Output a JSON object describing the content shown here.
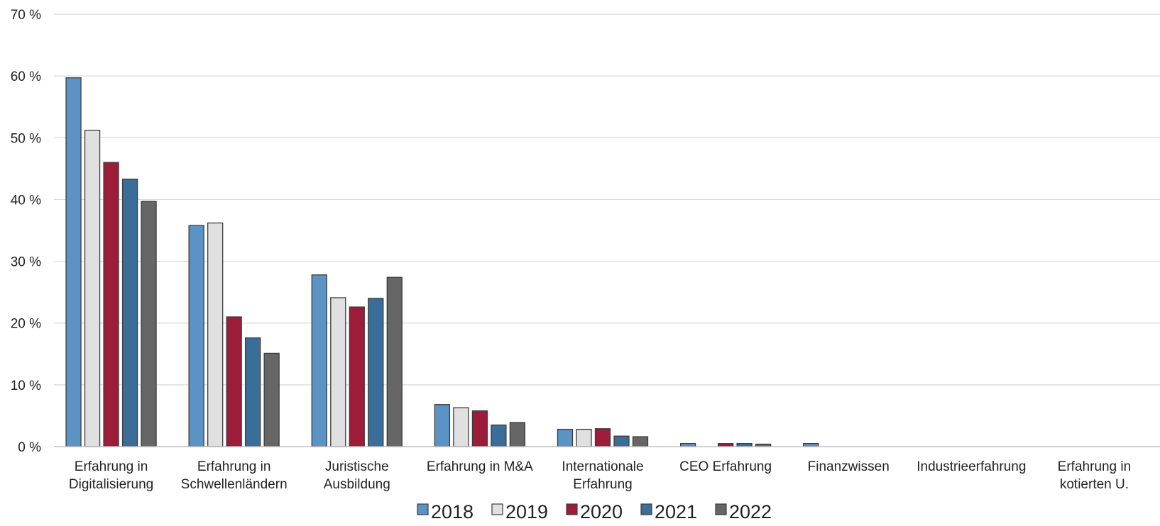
{
  "chart_data": {
    "type": "bar",
    "title": "",
    "xlabel": "",
    "ylabel": "",
    "ylim": [
      0,
      70
    ],
    "yticks": [
      0,
      10,
      20,
      30,
      40,
      50,
      60,
      70
    ],
    "y_tick_suffix": " %",
    "grid": true,
    "legend_position": "bottom",
    "categories": [
      [
        "Erfahrung in",
        "Digitalisierung"
      ],
      [
        "Erfahrung in",
        "Schwellenländern"
      ],
      [
        "Juristische",
        "Ausbildung"
      ],
      [
        "Erfahrung in M&A"
      ],
      [
        "Internationale",
        "Erfahrung"
      ],
      [
        "CEO Erfahrung"
      ],
      [
        "Finanzwissen"
      ],
      [
        "Industrieerfahrung"
      ],
      [
        "Erfahrung in",
        "kotierten U."
      ]
    ],
    "series": [
      {
        "name": "2018",
        "color": "#5b93c5",
        "values": [
          59.7,
          35.8,
          27.8,
          6.8,
          2.8,
          0.5,
          0.5,
          0,
          0
        ]
      },
      {
        "name": "2019",
        "color": "#e0e0e0",
        "values": [
          51.2,
          36.2,
          24.1,
          6.3,
          2.8,
          0,
          0,
          0,
          0
        ]
      },
      {
        "name": "2020",
        "color": "#9d1c3a",
        "values": [
          46.0,
          21.0,
          22.6,
          5.8,
          2.9,
          0.5,
          0,
          0,
          0
        ]
      },
      {
        "name": "2021",
        "color": "#3a6e99",
        "values": [
          43.3,
          17.6,
          24.0,
          3.5,
          1.7,
          0.5,
          0,
          0,
          0
        ]
      },
      {
        "name": "2022",
        "color": "#666666",
        "values": [
          39.7,
          15.1,
          27.4,
          3.9,
          1.6,
          0.4,
          0,
          0,
          0
        ]
      }
    ]
  }
}
